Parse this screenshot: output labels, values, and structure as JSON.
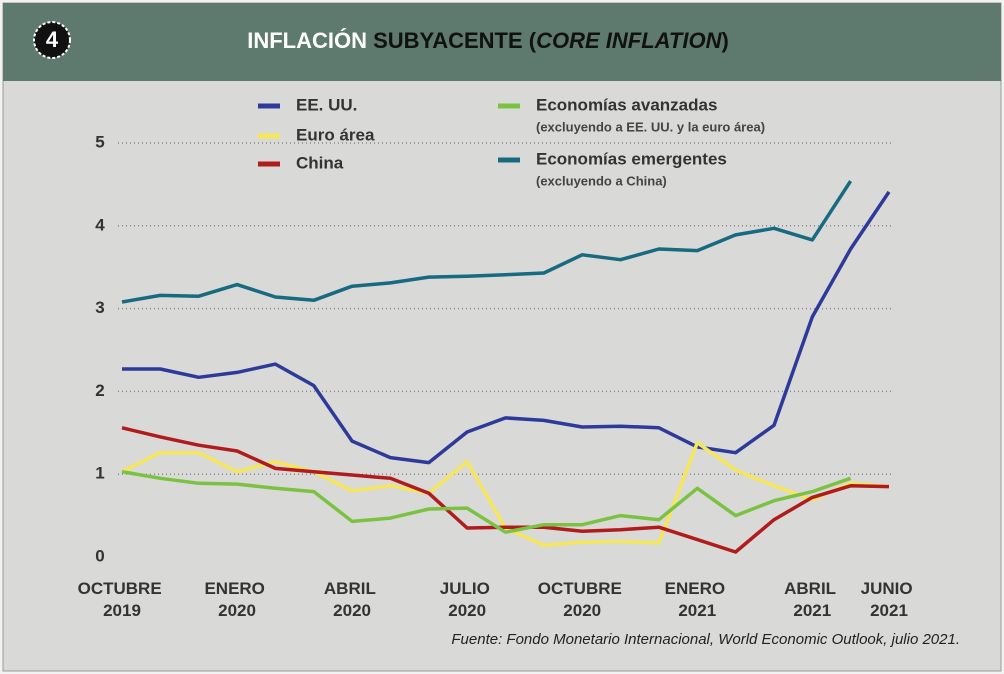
{
  "chart_data": {
    "type": "line",
    "badge": "4",
    "title": [
      "INFLACIÓN",
      " SUBYACENTE (",
      "CORE INFLATION",
      ")"
    ],
    "categories": [
      "OCTUBRE 2019",
      null,
      null,
      "ENERO 2020",
      null,
      null,
      "ABRIL 2020",
      null,
      null,
      "JULIO 2020",
      null,
      null,
      "OCTUBRE 2020",
      null,
      null,
      "ENERO 2021",
      null,
      null,
      "ABRIL 2021",
      null,
      "JUNIO 2021"
    ],
    "series": [
      {
        "name": "EE. UU.",
        "color": "#2e3a9a",
        "values": [
          2.27,
          2.27,
          2.17,
          2.23,
          2.33,
          2.07,
          1.4,
          1.2,
          1.14,
          1.51,
          1.68,
          1.65,
          1.57,
          1.58,
          1.56,
          1.33,
          1.26,
          1.59,
          2.9,
          3.72,
          4.41
        ]
      },
      {
        "name": "Euro área",
        "color": "#f5e65a",
        "values": [
          1.03,
          1.26,
          1.26,
          1.03,
          1.15,
          1.03,
          0.8,
          0.86,
          0.77,
          1.15,
          0.35,
          0.14,
          0.18,
          0.19,
          0.17,
          1.38,
          1.05,
          0.86,
          0.69,
          0.89,
          0.85
        ]
      },
      {
        "name": "China",
        "color": "#b01c1c",
        "values": [
          1.56,
          1.45,
          1.35,
          1.28,
          1.07,
          1.03,
          0.99,
          0.95,
          0.77,
          0.35,
          0.36,
          0.36,
          0.31,
          0.33,
          0.36,
          0.21,
          0.06,
          0.45,
          0.72,
          0.86,
          0.85
        ]
      },
      {
        "name": "Economías avanzadas",
        "note": "(excluyendo a EE. UU. y la euro área)",
        "color": "#7cc242",
        "values": [
          1.03,
          0.95,
          0.89,
          0.88,
          0.83,
          0.79,
          0.43,
          0.47,
          0.58,
          0.59,
          0.3,
          0.39,
          0.39,
          0.5,
          0.45,
          0.83,
          0.5,
          0.68,
          0.79,
          0.95,
          null
        ]
      },
      {
        "name": "Economías emergentes",
        "note": "(excluyendo a China)",
        "color": "#176a80",
        "values": [
          3.08,
          3.16,
          3.15,
          3.29,
          3.14,
          3.1,
          3.27,
          3.31,
          3.38,
          3.39,
          3.41,
          3.43,
          3.65,
          3.59,
          3.72,
          3.7,
          3.89,
          3.97,
          3.83,
          4.54,
          null
        ]
      }
    ],
    "ylim": [
      0,
      5.5
    ],
    "yticks": [
      0,
      1,
      2,
      3,
      4,
      5
    ],
    "grid": true,
    "source": "Fuente: Fondo Monetario Internacional, World Economic Outlook, julio 2021."
  }
}
